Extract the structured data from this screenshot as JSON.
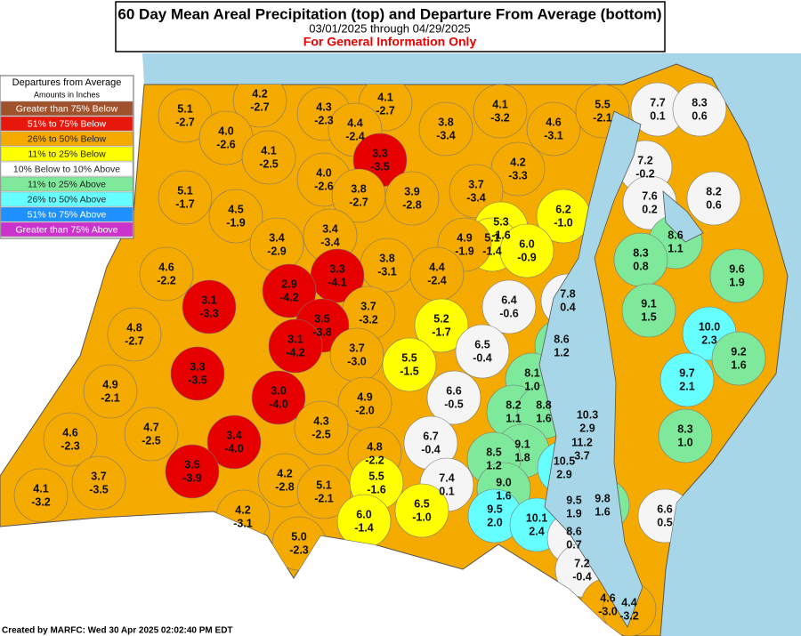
{
  "header": {
    "title": "60 Day Mean Areal Precipitation (top) and Departure From Average (bottom)",
    "subtitle": "03/01/2025 through 04/29/2025",
    "disclaimer": "For General Information Only"
  },
  "legend": {
    "title": "Departures from Average",
    "subtitle": "Amounts in Inches",
    "items": [
      {
        "label": "Greater than 75% Below",
        "color": "#a0522d"
      },
      {
        "label": "51% to 75% Below",
        "color": "#e8170c"
      },
      {
        "label": "26% to 50% Below",
        "color": "#f5aa00"
      },
      {
        "label": "11% to 25% Below",
        "color": "#ffff00"
      },
      {
        "label": "10% Below to 10% Above",
        "color": "#ffffff"
      },
      {
        "label": "11% to 25% Above",
        "color": "#7ee89b"
      },
      {
        "label": "26% to 50% Above",
        "color": "#66ffff"
      },
      {
        "label": "51% to 75% Above",
        "color": "#1e90ff"
      },
      {
        "label": "Greater than 75% Above",
        "color": "#cc33cc"
      }
    ]
  },
  "regions": [
    {
      "precip": "5.1",
      "departure": "-2.7",
      "color": "#f5aa00"
    },
    {
      "precip": "4.2",
      "departure": "-2.7",
      "color": "#f5aa00"
    },
    {
      "precip": "4.3",
      "departure": "-2.3",
      "color": "#f5aa00"
    },
    {
      "precip": "4.1",
      "departure": "-2.7",
      "color": "#f5aa00"
    },
    {
      "precip": "4.0",
      "departure": "-2.6",
      "color": "#f5aa00"
    },
    {
      "precip": "4.4",
      "departure": "-2.4",
      "color": "#f5aa00"
    },
    {
      "precip": "3.8",
      "departure": "-3.4",
      "color": "#f5aa00"
    },
    {
      "precip": "4.1",
      "departure": "-3.2",
      "color": "#f5aa00"
    },
    {
      "precip": "4.6",
      "departure": "-3.1",
      "color": "#f5aa00"
    },
    {
      "precip": "5.5",
      "departure": "-2.1",
      "color": "#f5aa00"
    },
    {
      "precip": "7.7",
      "departure": "0.1",
      "color": "#f5f5f5"
    },
    {
      "precip": "8.3",
      "departure": "0.6",
      "color": "#f5f5f5"
    },
    {
      "precip": "4.1",
      "departure": "-2.5",
      "color": "#f5aa00"
    },
    {
      "precip": "3.3",
      "departure": "-3.5",
      "color": "#e60000"
    },
    {
      "precip": "4.0",
      "departure": "-2.6",
      "color": "#f5aa00"
    },
    {
      "precip": "4.2",
      "departure": "-3.3",
      "color": "#f5aa00"
    },
    {
      "precip": "7.2",
      "departure": "-0.2",
      "color": "#f5f5f5"
    },
    {
      "precip": "5.1",
      "departure": "-1.7",
      "color": "#f5aa00"
    },
    {
      "precip": "3.8",
      "departure": "-2.7",
      "color": "#f5aa00"
    },
    {
      "precip": "3.9",
      "departure": "-2.8",
      "color": "#f5aa00"
    },
    {
      "precip": "3.7",
      "departure": "-3.4",
      "color": "#f5aa00"
    },
    {
      "precip": "7.6",
      "departure": "0.2",
      "color": "#f5f5f5"
    },
    {
      "precip": "8.2",
      "departure": "0.6",
      "color": "#f5f5f5"
    },
    {
      "precip": "4.5",
      "departure": "-1.9",
      "color": "#f5aa00"
    },
    {
      "precip": "5.3",
      "departure": "-1.6",
      "color": "#ffff00"
    },
    {
      "precip": "5.1",
      "departure": "-1.4",
      "color": "#ffff00"
    },
    {
      "precip": "6.2",
      "departure": "-1.0",
      "color": "#ffff00"
    },
    {
      "precip": "3.4",
      "departure": "-2.9",
      "color": "#f5aa00"
    },
    {
      "precip": "3.4",
      "departure": "-3.4",
      "color": "#f5aa00"
    },
    {
      "precip": "4.9",
      "departure": "-1.9",
      "color": "#f5aa00"
    },
    {
      "precip": "6.0",
      "departure": "-0.9",
      "color": "#ffff00"
    },
    {
      "precip": "8.6",
      "departure": "1.1",
      "color": "#7ee89b"
    },
    {
      "precip": "4.6",
      "departure": "-2.2",
      "color": "#f5aa00"
    },
    {
      "precip": "3.8",
      "departure": "-3.1",
      "color": "#f5aa00"
    },
    {
      "precip": "4.4",
      "departure": "-2.4",
      "color": "#f5aa00"
    },
    {
      "precip": "8.3",
      "departure": "0.8",
      "color": "#7ee89b"
    },
    {
      "precip": "9.6",
      "departure": "1.9",
      "color": "#7ee89b"
    },
    {
      "precip": "3.3",
      "departure": "-4.1",
      "color": "#e60000"
    },
    {
      "precip": "2.9",
      "departure": "-4.2",
      "color": "#e60000"
    },
    {
      "precip": "3.1",
      "departure": "-3.3",
      "color": "#e60000"
    },
    {
      "precip": "7.8",
      "departure": "0.4",
      "color": "#f5f5f5"
    },
    {
      "precip": "6.4",
      "departure": "-0.6",
      "color": "#f5f5f5"
    },
    {
      "precip": "9.1",
      "departure": "1.5",
      "color": "#7ee89b"
    },
    {
      "precip": "3.7",
      "departure": "-3.2",
      "color": "#f5aa00"
    },
    {
      "precip": "3.5",
      "departure": "-3.8",
      "color": "#e60000"
    },
    {
      "precip": "5.2",
      "departure": "-1.7",
      "color": "#ffff00"
    },
    {
      "precip": "10.0",
      "departure": "2.3",
      "color": "#66ffff"
    },
    {
      "precip": "4.8",
      "departure": "-2.7",
      "color": "#f5aa00"
    },
    {
      "precip": "3.1",
      "departure": "-4.2",
      "color": "#e60000"
    },
    {
      "precip": "8.6",
      "departure": "1.2",
      "color": "#7ee89b"
    },
    {
      "precip": "6.5",
      "departure": "-0.4",
      "color": "#f5f5f5"
    },
    {
      "precip": "3.7",
      "departure": "-3.0",
      "color": "#f5aa00"
    },
    {
      "precip": "5.5",
      "departure": "-1.5",
      "color": "#ffff00"
    },
    {
      "precip": "9.2",
      "departure": "1.6",
      "color": "#7ee89b"
    },
    {
      "precip": "3.3",
      "departure": "-3.5",
      "color": "#e60000"
    },
    {
      "precip": "8.1",
      "departure": "1.0",
      "color": "#7ee89b"
    },
    {
      "precip": "9.7",
      "departure": "2.1",
      "color": "#66ffff"
    },
    {
      "precip": "4.9",
      "departure": "-2.1",
      "color": "#f5aa00"
    },
    {
      "precip": "6.6",
      "departure": "-0.5",
      "color": "#f5f5f5"
    },
    {
      "precip": "3.0",
      "departure": "-4.0",
      "color": "#e60000"
    },
    {
      "precip": "4.9",
      "departure": "-2.0",
      "color": "#f5aa00"
    },
    {
      "precip": "8.2",
      "departure": "1.1",
      "color": "#7ee89b"
    },
    {
      "precip": "8.8",
      "departure": "1.6",
      "color": "#7ee89b"
    },
    {
      "precip": "10.3",
      "departure": "2.9",
      "color": "#66ffff"
    },
    {
      "precip": "4.3",
      "departure": "-2.5",
      "color": "#f5aa00"
    },
    {
      "precip": "8.3",
      "departure": "1.0",
      "color": "#7ee89b"
    },
    {
      "precip": "4.7",
      "departure": "-2.5",
      "color": "#f5aa00"
    },
    {
      "precip": "4.6",
      "departure": "-2.3",
      "color": "#f5aa00"
    },
    {
      "precip": "3.4",
      "departure": "-4.0",
      "color": "#e60000"
    },
    {
      "precip": "6.7",
      "departure": "-0.4",
      "color": "#f5f5f5"
    },
    {
      "precip": "11.2",
      "departure": "3.7",
      "color": "#66ffff"
    },
    {
      "precip": "9.1",
      "departure": "1.8",
      "color": "#7ee89b"
    },
    {
      "precip": "4.8",
      "departure": "-2.2",
      "color": "#f5aa00"
    },
    {
      "precip": "8.5",
      "departure": "1.2",
      "color": "#7ee89b"
    },
    {
      "precip": "10.5",
      "departure": "2.9",
      "color": "#66ffff"
    },
    {
      "precip": "3.5",
      "departure": "-3.9",
      "color": "#e60000"
    },
    {
      "precip": "4.2",
      "departure": "-2.8",
      "color": "#f5aa00"
    },
    {
      "precip": "3.7",
      "departure": "-3.5",
      "color": "#f5aa00"
    },
    {
      "precip": "5.5",
      "departure": "-1.6",
      "color": "#ffff00"
    },
    {
      "precip": "7.4",
      "departure": "0.1",
      "color": "#f5f5f5"
    },
    {
      "precip": "9.0",
      "departure": "1.6",
      "color": "#7ee89b"
    },
    {
      "precip": "5.1",
      "departure": "-2.1",
      "color": "#f5aa00"
    },
    {
      "precip": "4.1",
      "departure": "-3.2",
      "color": "#f5aa00"
    },
    {
      "precip": "9.8",
      "departure": "1.6",
      "color": "#7ee89b"
    },
    {
      "precip": "9.5",
      "departure": "1.9",
      "color": "#66ffff"
    },
    {
      "precip": "6.5",
      "departure": "-1.0",
      "color": "#ffff00"
    },
    {
      "precip": "9.5",
      "departure": "2.0",
      "color": "#66ffff"
    },
    {
      "precip": "10.1",
      "departure": "2.4",
      "color": "#66ffff"
    },
    {
      "precip": "4.2",
      "departure": "-3.1",
      "color": "#f5aa00"
    },
    {
      "precip": "6.0",
      "departure": "-1.4",
      "color": "#ffff00"
    },
    {
      "precip": "6.6",
      "departure": "0.5",
      "color": "#f5f5f5"
    },
    {
      "precip": "8.6",
      "departure": "0.7",
      "color": "#f5f5f5"
    },
    {
      "precip": "5.0",
      "departure": "-2.3",
      "color": "#f5aa00"
    },
    {
      "precip": "7.2",
      "departure": "-0.4",
      "color": "#f5f5f5"
    },
    {
      "precip": "4.6",
      "departure": "-3.0",
      "color": "#f5aa00"
    },
    {
      "precip": "4.4",
      "departure": "-3.2",
      "color": "#f5aa00"
    }
  ],
  "footer": "Created by MARFC: Wed 30 Apr 2025 02:02:40 PM EDT"
}
